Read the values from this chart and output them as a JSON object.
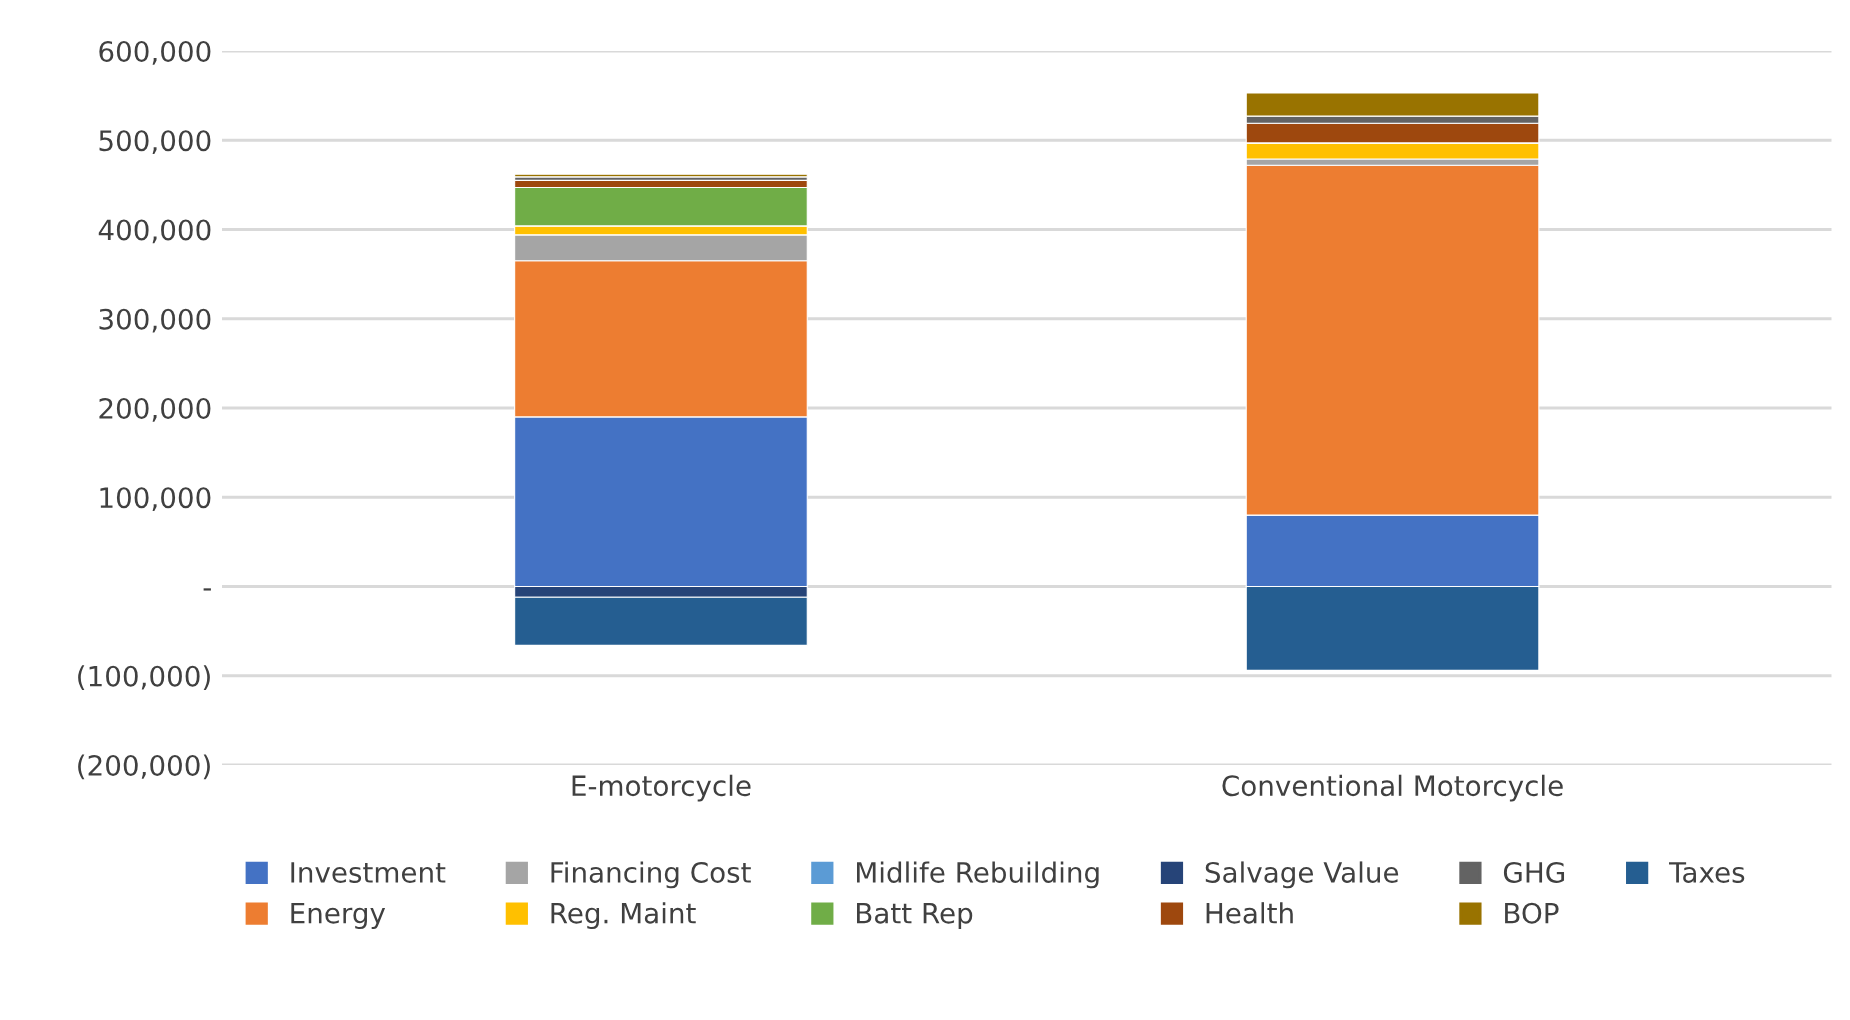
{
  "chart_data": {
    "type": "bar",
    "stacked": true,
    "categories": [
      "E-motorcycle",
      "Conventional Motorcycle"
    ],
    "series": [
      {
        "name": "Investment",
        "color": "#4472c4",
        "values": [
          190000,
          80000
        ]
      },
      {
        "name": "Energy",
        "color": "#ed7d31",
        "values": [
          175000,
          392000
        ]
      },
      {
        "name": "Financing Cost",
        "color": "#a5a5a5",
        "values": [
          29000,
          7000
        ]
      },
      {
        "name": "Reg. Maint",
        "color": "#ffc000",
        "values": [
          10000,
          18000
        ]
      },
      {
        "name": "Midlife Rebuilding",
        "color": "#5b9bd5",
        "values": [
          0,
          0
        ]
      },
      {
        "name": "Batt Rep",
        "color": "#70ad47",
        "values": [
          43000,
          0
        ]
      },
      {
        "name": "Salvage Value",
        "color": "#264478",
        "values": [
          -12000,
          0
        ]
      },
      {
        "name": "Health",
        "color": "#9e480e",
        "values": [
          8000,
          22000
        ]
      },
      {
        "name": "GHG",
        "color": "#636363",
        "values": [
          4000,
          8000
        ]
      },
      {
        "name": "BOP",
        "color": "#997300",
        "values": [
          3000,
          26000
        ]
      },
      {
        "name": "Taxes",
        "color": "#255e91",
        "values": [
          -54000,
          -94000
        ]
      }
    ],
    "ylim": [
      -200000,
      600000
    ],
    "yticks": [
      {
        "value": -200000,
        "label": "(200,000)"
      },
      {
        "value": -100000,
        "label": "(100,000)"
      },
      {
        "value": 0,
        "label": "-"
      },
      {
        "value": 100000,
        "label": "100,000"
      },
      {
        "value": 200000,
        "label": "200,000"
      },
      {
        "value": 300000,
        "label": "300,000"
      },
      {
        "value": 400000,
        "label": "400,000"
      },
      {
        "value": 500000,
        "label": "500,000"
      },
      {
        "value": 600000,
        "label": "600,000"
      }
    ],
    "grid": "y",
    "legend": "bottom"
  }
}
